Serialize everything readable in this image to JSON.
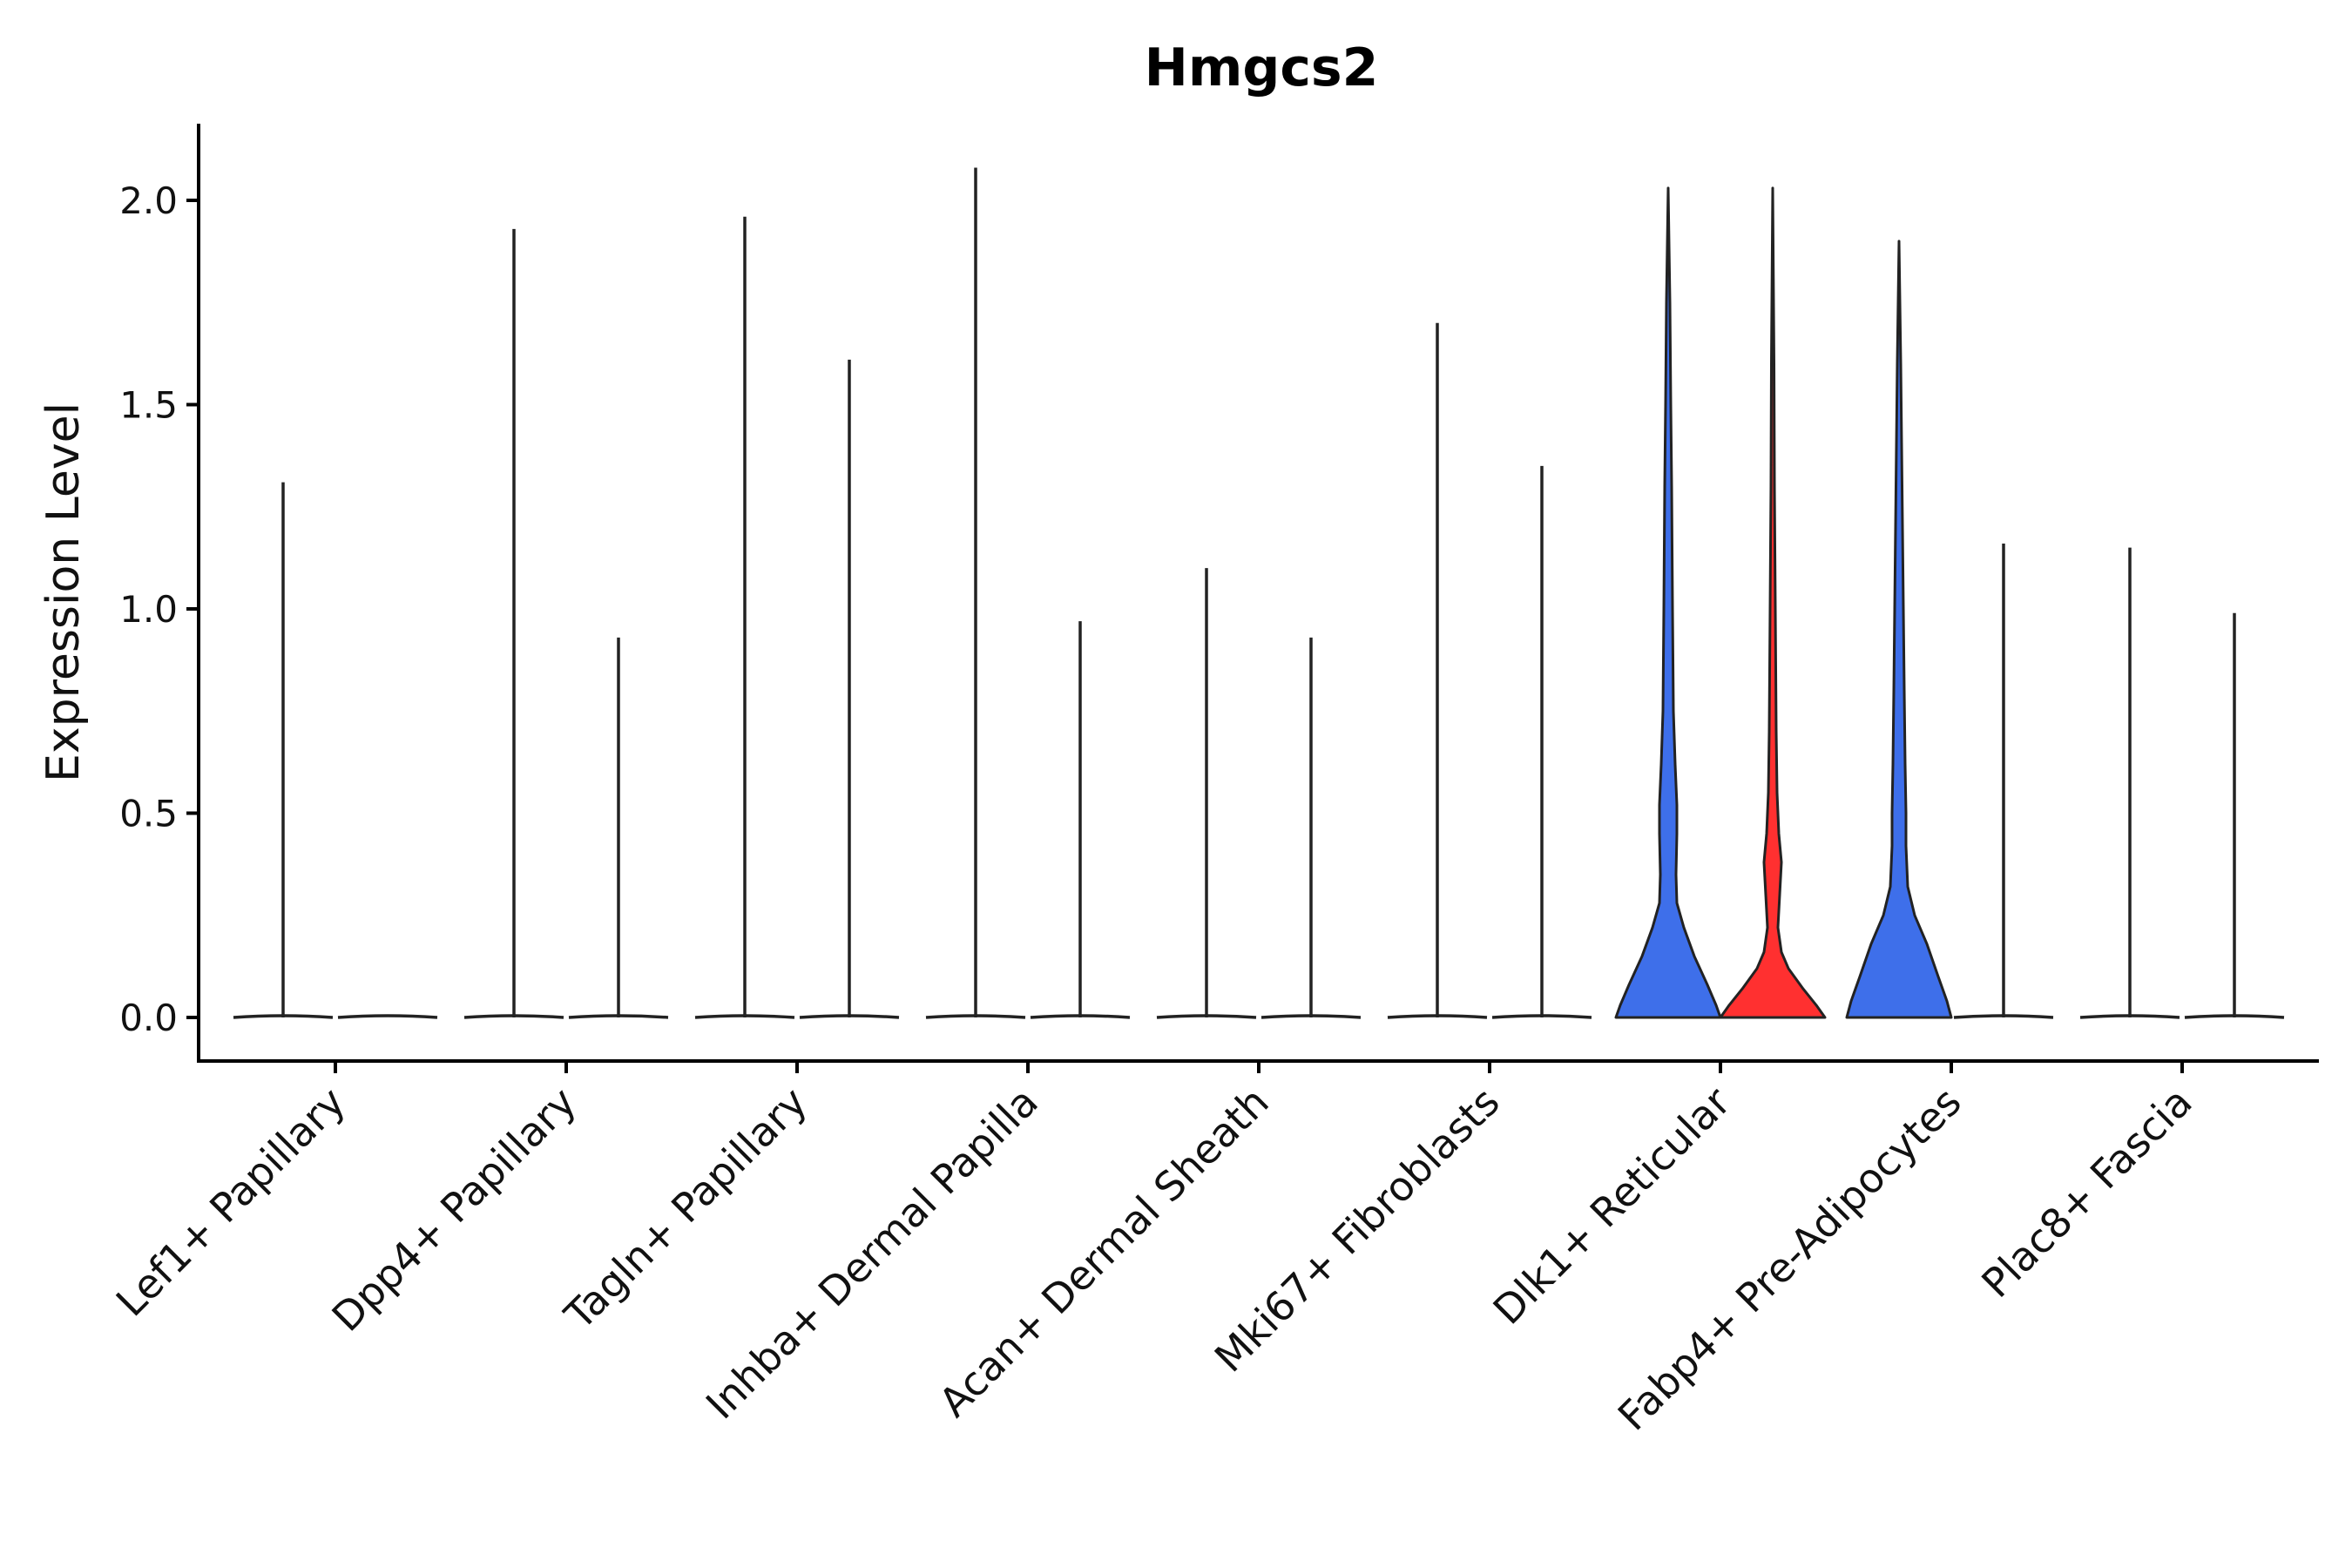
{
  "chart_data": {
    "type": "violin",
    "title": "Hmgcs2",
    "xlabel": "",
    "ylabel": "Expression Level",
    "ylim": [
      -0.1,
      2.2
    ],
    "yticks": [
      "0.0",
      "0.5",
      "1.0",
      "1.5",
      "2.0"
    ],
    "ytick_values": [
      0.0,
      0.5,
      1.0,
      1.5,
      2.0
    ],
    "groups": [
      {
        "label": "Lef1+ Papillary",
        "split": [
          {
            "max": 1.31,
            "color": "#3E6FEA",
            "shape": "flat"
          },
          {
            "max": 0.0,
            "color": "#FF3030",
            "shape": "flat"
          }
        ]
      },
      {
        "label": "Dpp4+ Papillary",
        "split": [
          {
            "max": 1.93,
            "color": "#3E6FEA",
            "shape": "flat"
          },
          {
            "max": 0.93,
            "color": "#FF3030",
            "shape": "flat"
          }
        ]
      },
      {
        "label": "Tagln+ Papillary",
        "split": [
          {
            "max": 1.96,
            "color": "#3E6FEA",
            "shape": "flat"
          },
          {
            "max": 1.61,
            "color": "#FF3030",
            "shape": "flat"
          }
        ]
      },
      {
        "label": "Inhba+ Dermal Papilla",
        "split": [
          {
            "max": 2.08,
            "color": "#3E6FEA",
            "shape": "flat"
          },
          {
            "max": 0.97,
            "color": "#FF3030",
            "shape": "flat"
          }
        ]
      },
      {
        "label": "Acan+ Dermal Sheath",
        "split": [
          {
            "max": 1.1,
            "color": "#3E6FEA",
            "shape": "flat"
          },
          {
            "max": 0.93,
            "color": "#FF3030",
            "shape": "flat"
          }
        ]
      },
      {
        "label": "Mki67+ Fibroblasts",
        "split": [
          {
            "max": 1.7,
            "color": "#3E6FEA",
            "shape": "flat"
          },
          {
            "max": 1.35,
            "color": "#FF3030",
            "shape": "flat"
          }
        ]
      },
      {
        "label": "Dlk1+ Reticular",
        "split": [
          {
            "max": 2.03,
            "color": "#3E6FEA",
            "shape": "dlk1_a"
          },
          {
            "max": 2.03,
            "color": "#FF3030",
            "shape": "dlk1_b"
          }
        ]
      },
      {
        "label": "Fabp4+ Pre-Adipocytes",
        "split": [
          {
            "max": 1.9,
            "color": "#3E6FEA",
            "shape": "fabp4_a"
          },
          {
            "max": 1.16,
            "color": "#FF3030",
            "shape": "flat"
          }
        ]
      },
      {
        "label": "Plac8+ Fascia",
        "split": [
          {
            "max": 1.15,
            "color": "#3E6FEA",
            "shape": "flat"
          },
          {
            "max": 0.99,
            "color": "#FF3030",
            "shape": "flat"
          }
        ]
      }
    ]
  }
}
